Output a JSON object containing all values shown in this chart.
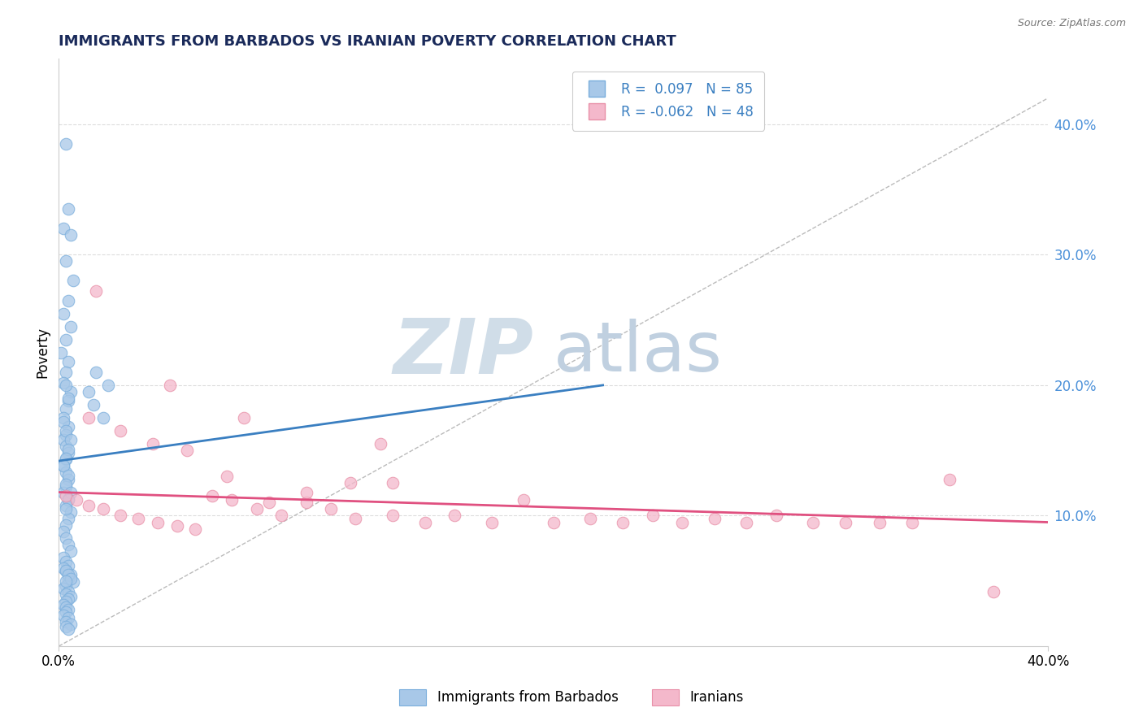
{
  "title": "IMMIGRANTS FROM BARBADOS VS IRANIAN POVERTY CORRELATION CHART",
  "source": "Source: ZipAtlas.com",
  "ylabel": "Poverty",
  "right_yticks": [
    "40.0%",
    "30.0%",
    "20.0%",
    "10.0%"
  ],
  "right_ytick_vals": [
    0.4,
    0.3,
    0.2,
    0.1
  ],
  "xlim": [
    0.0,
    0.4
  ],
  "ylim": [
    0.0,
    0.45
  ],
  "legend_r1": "R =  0.097",
  "legend_n1": "N = 85",
  "legend_r2": "R = -0.062",
  "legend_n2": "N = 48",
  "blue_color": "#a8c8e8",
  "blue_edge_color": "#7aaedc",
  "pink_color": "#f4b8cb",
  "pink_edge_color": "#e890a8",
  "blue_line_color": "#3a7fc1",
  "pink_line_color": "#e05080",
  "title_color": "#1a2a5a",
  "source_color": "#777777",
  "watermark_zip_color": "#d0dde8",
  "watermark_atlas_color": "#c0d0e0",
  "blue_scatter_x": [
    0.003,
    0.004,
    0.002,
    0.005,
    0.003,
    0.006,
    0.004,
    0.002,
    0.005,
    0.003,
    0.001,
    0.004,
    0.003,
    0.002,
    0.005,
    0.004,
    0.003,
    0.002,
    0.004,
    0.003,
    0.002,
    0.003,
    0.004,
    0.003,
    0.002,
    0.003,
    0.004,
    0.003,
    0.002,
    0.004,
    0.003,
    0.005,
    0.004,
    0.003,
    0.002,
    0.003,
    0.004,
    0.005,
    0.003,
    0.004,
    0.002,
    0.003,
    0.005,
    0.004,
    0.003,
    0.002,
    0.004,
    0.003,
    0.005,
    0.004,
    0.003,
    0.002,
    0.003,
    0.004,
    0.003,
    0.005,
    0.004,
    0.006,
    0.003,
    0.002,
    0.004,
    0.003,
    0.005,
    0.004,
    0.003,
    0.015,
    0.012,
    0.018,
    0.02,
    0.014,
    0.002,
    0.003,
    0.004,
    0.003,
    0.002,
    0.004,
    0.003,
    0.005,
    0.003,
    0.004,
    0.002,
    0.003,
    0.004,
    0.005,
    0.003
  ],
  "blue_scatter_y": [
    0.385,
    0.335,
    0.32,
    0.315,
    0.295,
    0.28,
    0.265,
    0.255,
    0.245,
    0.235,
    0.225,
    0.218,
    0.21,
    0.202,
    0.195,
    0.188,
    0.182,
    0.175,
    0.168,
    0.162,
    0.158,
    0.153,
    0.148,
    0.143,
    0.138,
    0.133,
    0.128,
    0.122,
    0.118,
    0.113,
    0.108,
    0.103,
    0.098,
    0.093,
    0.088,
    0.083,
    0.078,
    0.073,
    0.2,
    0.19,
    0.172,
    0.165,
    0.158,
    0.151,
    0.144,
    0.138,
    0.131,
    0.124,
    0.118,
    0.112,
    0.105,
    0.068,
    0.065,
    0.062,
    0.058,
    0.055,
    0.052,
    0.049,
    0.046,
    0.044,
    0.042,
    0.04,
    0.038,
    0.036,
    0.034,
    0.21,
    0.195,
    0.175,
    0.2,
    0.185,
    0.032,
    0.03,
    0.028,
    0.026,
    0.024,
    0.022,
    0.019,
    0.017,
    0.015,
    0.013,
    0.06,
    0.058,
    0.055,
    0.052,
    0.05
  ],
  "pink_scatter_x": [
    0.003,
    0.007,
    0.012,
    0.018,
    0.025,
    0.032,
    0.04,
    0.048,
    0.055,
    0.062,
    0.07,
    0.08,
    0.09,
    0.1,
    0.11,
    0.12,
    0.135,
    0.148,
    0.16,
    0.175,
    0.188,
    0.2,
    0.215,
    0.228,
    0.24,
    0.252,
    0.265,
    0.278,
    0.29,
    0.305,
    0.318,
    0.332,
    0.345,
    0.012,
    0.025,
    0.038,
    0.052,
    0.068,
    0.085,
    0.1,
    0.118,
    0.135,
    0.015,
    0.045,
    0.075,
    0.13,
    0.36,
    0.378
  ],
  "pink_scatter_y": [
    0.115,
    0.112,
    0.108,
    0.105,
    0.1,
    0.098,
    0.095,
    0.092,
    0.09,
    0.115,
    0.112,
    0.105,
    0.1,
    0.11,
    0.105,
    0.098,
    0.1,
    0.095,
    0.1,
    0.095,
    0.112,
    0.095,
    0.098,
    0.095,
    0.1,
    0.095,
    0.098,
    0.095,
    0.1,
    0.095,
    0.095,
    0.095,
    0.095,
    0.175,
    0.165,
    0.155,
    0.15,
    0.13,
    0.11,
    0.118,
    0.125,
    0.125,
    0.272,
    0.2,
    0.175,
    0.155,
    0.128,
    0.042
  ],
  "blue_trendline_x": [
    0.0,
    0.22
  ],
  "blue_trendline_y": [
    0.142,
    0.2
  ],
  "pink_trendline_x": [
    0.0,
    0.4
  ],
  "pink_trendline_y": [
    0.118,
    0.095
  ],
  "dashed_trendline_x": [
    0.0,
    0.4
  ],
  "dashed_trendline_y": [
    0.0,
    0.42
  ],
  "grid_yticks": [
    0.1,
    0.2,
    0.3,
    0.4
  ]
}
